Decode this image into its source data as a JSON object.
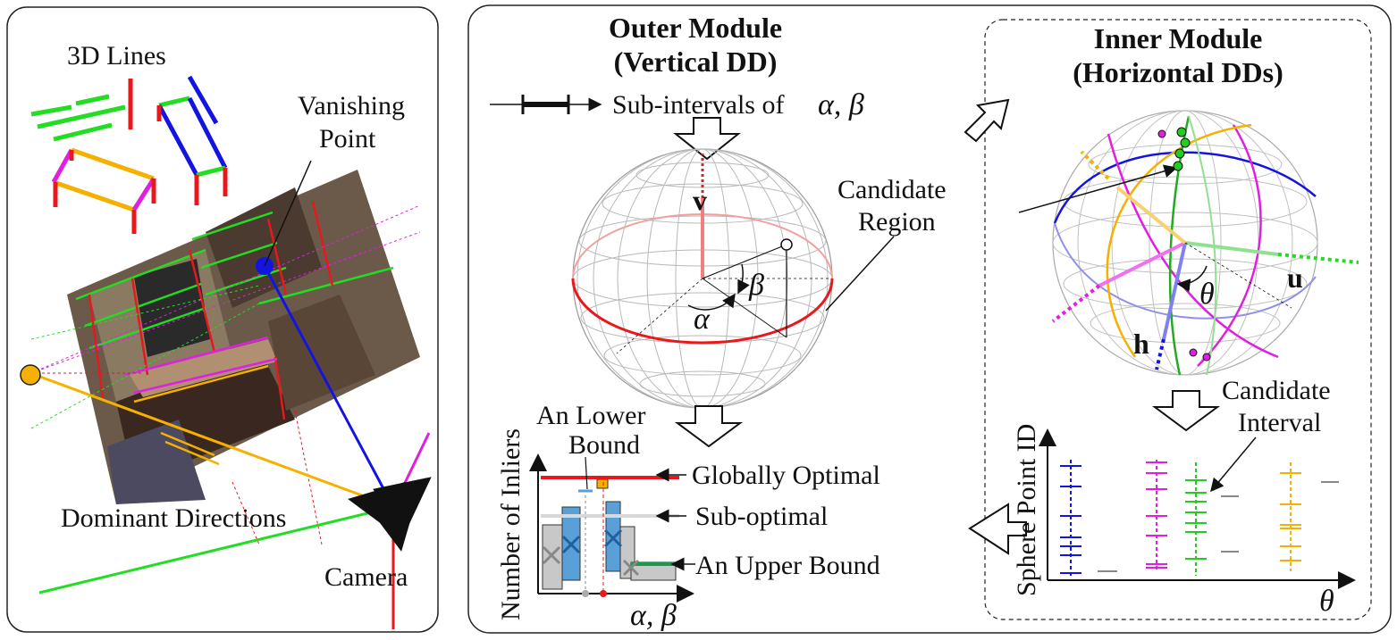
{
  "left_panel": {
    "title_3d_lines": "3D Lines",
    "vanishing_point": "Vanishing\nPoint",
    "dominant_directions": "Dominant Directions",
    "camera": "Camera"
  },
  "outer_module": {
    "title": "Outer Module",
    "subtitle": "(Vertical DD)",
    "subintervals": "Sub-intervals of",
    "alpha_beta": "α, β",
    "v": "v",
    "alpha": "α",
    "beta": "β",
    "candidate_region": "Candidate\nRegion",
    "y_axis": "Number of Inliers",
    "x_axis": "α, β",
    "lower_bound": "An Lower\nBound",
    "globally_optimal": "Globally Optimal",
    "sub_optimal": "Sub-optimal",
    "upper_bound": "An Upper Bound"
  },
  "inner_module": {
    "title": "Inner Module",
    "subtitle": "(Horizontal DDs)",
    "u": "u",
    "h": "h",
    "theta": "θ",
    "candidate_interval": "Candidate\nInterval",
    "y_axis": "Sphere Point ID",
    "x_axis": "θ"
  },
  "colors": {
    "red": "#e8181c",
    "green": "#22dd22",
    "blue": "#1414e0",
    "magenta": "#e020e0",
    "orange": "#f5b000",
    "bar_blue": "#5aa0d8",
    "bar_gray": "#c8c8c8"
  }
}
